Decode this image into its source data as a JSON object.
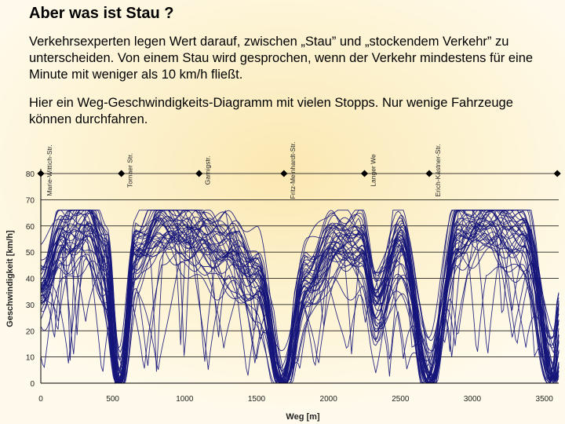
{
  "slide": {
    "title": "Aber was ist Stau ?",
    "paragraph1": "Verkehrsexperten legen Wert darauf, zwischen „Stau” und „stockendem Verkehr” zu unterscheiden. Von einem Stau wird gesprochen, wenn der Verkehr mindestens für eine Minute mit weniger als 10 km/h fließt.",
    "paragraph2": "Hier ein Weg-Geschwindigkeits-Diagramm mit vielen Stopps. Nur wenige Fahrzeuge können durchfahren."
  },
  "colors": {
    "line": "#15157a",
    "grid": "#000000",
    "accent": "#fbe8b2"
  },
  "chart_data": {
    "type": "line",
    "title": "",
    "xlabel": "Weg [m]",
    "ylabel": "Geschwindigkeit [km/h]",
    "xlim": [
      0,
      3600
    ],
    "ylim": [
      0,
      80
    ],
    "xticks": [
      0,
      500,
      1000,
      1500,
      2000,
      2500,
      3000,
      3500
    ],
    "yticks": [
      0,
      10,
      20,
      30,
      40,
      50,
      60,
      70,
      80
    ],
    "grid": "horizontal",
    "legend": "none",
    "stop_markers": [
      {
        "name": "Marie-Wittich-Str.",
        "x": 0
      },
      {
        "name": "Tornaer Str.",
        "x": 560
      },
      {
        "name": "Garnigstr.",
        "x": 1100
      },
      {
        "name": "Fritz-Meinhardt-Str.",
        "x": 1690
      },
      {
        "name": "Langer We",
        "x": 2250
      },
      {
        "name": "Erich-Kästner-Str.",
        "x": 2700
      },
      {
        "name": "",
        "x": 3590
      }
    ],
    "profile": {
      "x": [
        0,
        150,
        320,
        460,
        545,
        650,
        850,
        1100,
        1300,
        1500,
        1680,
        1850,
        2050,
        2230,
        2330,
        2500,
        2700,
        2900,
        3100,
        3350,
        3560,
        3600
      ],
      "typical_speed": [
        35,
        55,
        60,
        45,
        3,
        48,
        58,
        55,
        50,
        40,
        3,
        38,
        52,
        52,
        30,
        52,
        5,
        56,
        60,
        56,
        10,
        25
      ]
    },
    "series_count": 40
  }
}
